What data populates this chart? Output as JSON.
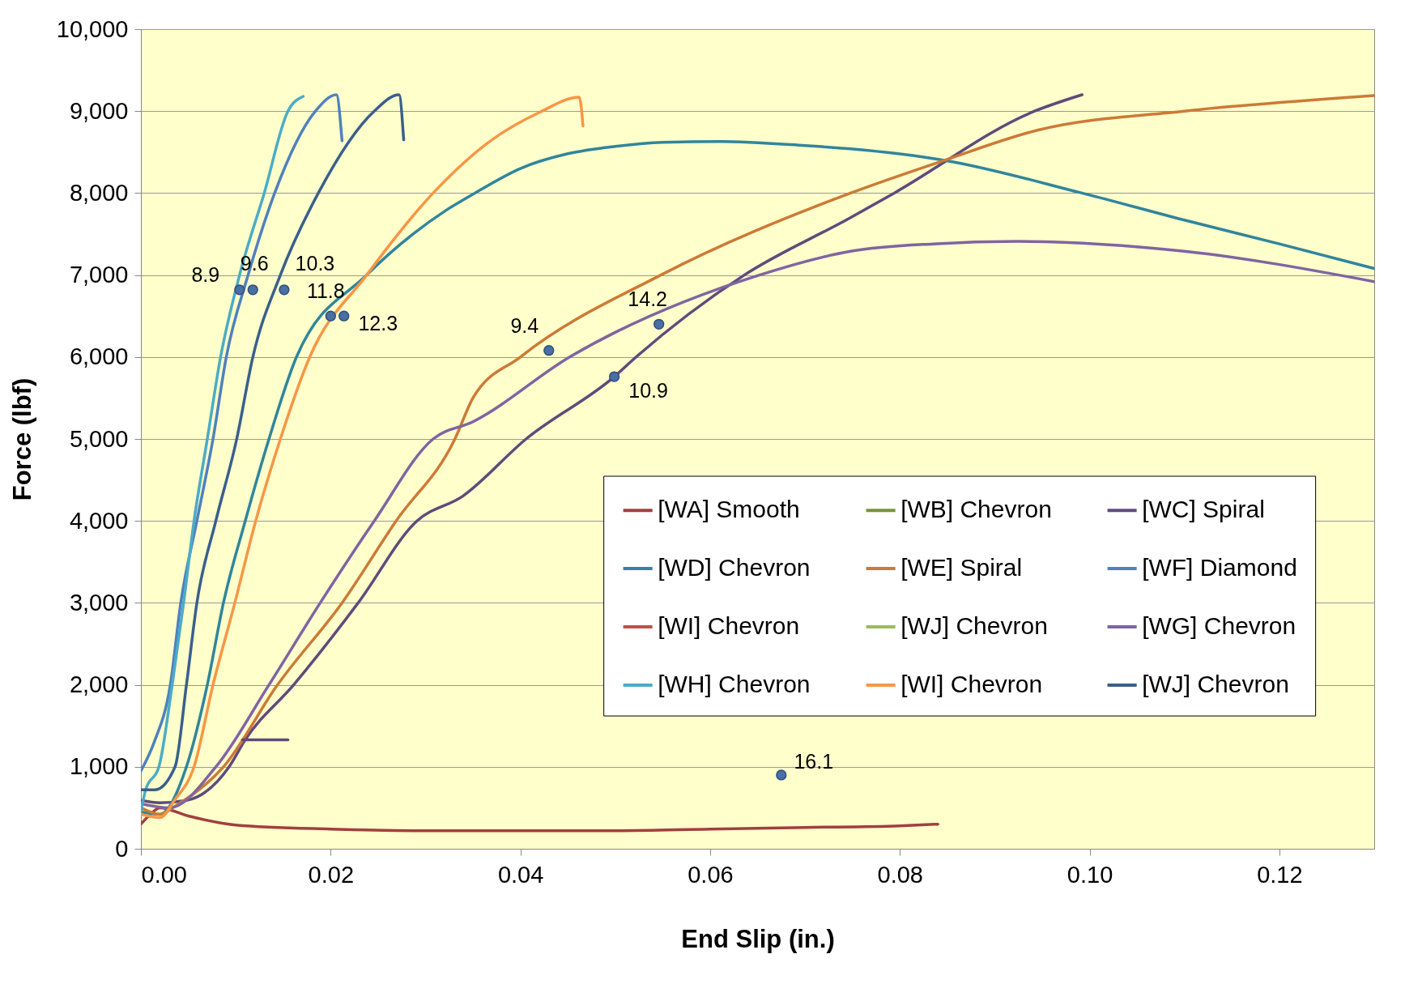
{
  "chart_data": {
    "type": "line",
    "xlabel": "End Slip (in.)",
    "ylabel": "Force (lbf)",
    "xlim": [
      0,
      0.13
    ],
    "ylim": [
      0,
      10000
    ],
    "xticks": [
      {
        "value": 0,
        "label": "0.00"
      },
      {
        "value": 0.02,
        "label": "0.02"
      },
      {
        "value": 0.04,
        "label": "0.04"
      },
      {
        "value": 0.06,
        "label": "0.06"
      },
      {
        "value": 0.08,
        "label": "0.08"
      },
      {
        "value": 0.1,
        "label": "0.10"
      },
      {
        "value": 0.12,
        "label": "0.12"
      }
    ],
    "yticks": [
      0,
      {
        "value": 1000,
        "label": "1,000"
      },
      {
        "value": 2000,
        "label": "2,000"
      },
      {
        "value": 3000,
        "label": "3,000"
      },
      {
        "value": 4000,
        "label": "4,000"
      },
      {
        "value": 5000,
        "label": "5,000"
      },
      {
        "value": 6000,
        "label": "6,000"
      },
      {
        "value": 7000,
        "label": "7,000"
      },
      {
        "value": 8000,
        "label": "8,000"
      },
      {
        "value": 9000,
        "label": "9,000"
      },
      {
        "value": 10000,
        "label": "10,000"
      }
    ],
    "grid": "y",
    "legend": "bottom right",
    "line_style": "solid",
    "series": [
      {
        "name": "[WA] Smooth",
        "color": "#a0403f",
        "x": [
          0,
          0.001,
          0.002,
          0.005,
          0.01,
          0.02,
          0.03,
          0.04,
          0.05,
          0.06,
          0.07,
          0.08,
          0.084
        ],
        "values": [
          300,
          420,
          500,
          400,
          290,
          240,
          220,
          220,
          220,
          240,
          260,
          280,
          300
        ]
      },
      {
        "name": "[WB] Chevron",
        "color": "#77933c"
      },
      {
        "name": "[WC] Spiral",
        "color": "#604a7b",
        "x": [
          0,
          0.002,
          0.0048,
          0.0093,
          0.011,
          0.0161,
          0.0229,
          0.0291,
          0.0339,
          0.0406,
          0.0499,
          0.0522,
          0.0636,
          0.0748,
          0.0794,
          0.0942,
          0.0992
        ],
        "values": [
          590,
          560,
          590,
          1000,
          1330,
          2000,
          3000,
          4000,
          4300,
          5000,
          5760,
          6000,
          7000,
          7700,
          8000,
          9000,
          9200
        ]
      },
      {
        "name": "[WD] Chevron",
        "color": "#31859c",
        "x": [
          0,
          0.002,
          0.0048,
          0.007,
          0.0087,
          0.011,
          0.0135,
          0.0164,
          0.0238,
          0.0323,
          0.0352,
          0.04,
          0.045,
          0.05,
          0.055,
          0.061,
          0.07,
          0.0748,
          0.0847,
          0.0992,
          0.11,
          0.12,
          0.13
        ],
        "values": [
          450,
          420,
          1000,
          2000,
          3000,
          4000,
          5000,
          6000,
          7000,
          7800,
          8000,
          8300,
          8480,
          8570,
          8620,
          8630,
          8580,
          8540,
          8400,
          8000,
          7670,
          7380,
          7080
        ]
      },
      {
        "name": "[WE] Spiral",
        "color": "#cc7a36",
        "x": [
          0,
          0.002,
          0.0036,
          0.0087,
          0.0144,
          0.0212,
          0.0269,
          0.0331,
          0.035,
          0.04,
          0.0548,
          0.0748,
          0.0847,
          0.0946,
          0.11,
          0.13
        ],
        "values": [
          500,
          420,
          520,
          1000,
          2000,
          3000,
          4000,
          5000,
          5500,
          6000,
          7000,
          8000,
          8400,
          8770,
          9000,
          9190
        ]
      },
      {
        "name": "[WF] Diamond",
        "color": "#4f81bd",
        "x": [
          0,
          0.0014,
          0.0031,
          0.0042,
          0.0059,
          0.0076,
          0.009,
          0.0113,
          0.0141,
          0.0184,
          0.0206,
          0.0212
        ],
        "values": [
          950,
          1300,
          2000,
          3000,
          4000,
          5000,
          6000,
          7000,
          8000,
          9000,
          9200,
          8640
        ]
      },
      {
        "name": "[WI] Chevron",
        "color": "#c0504d"
      },
      {
        "name": "[WJ] Chevron",
        "color": "#9bbb59"
      },
      {
        "name": "[WG] Chevron",
        "color": "#8064a2",
        "x": [
          0,
          0.003,
          0.0079,
          0.0135,
          0.0189,
          0.0246,
          0.0308,
          0.035,
          0.0452,
          0.0652,
          0.0748,
          0.0835,
          0.0925,
          0.11,
          0.13
        ],
        "values": [
          550,
          500,
          1000,
          2000,
          3000,
          4000,
          5000,
          5210,
          6000,
          7000,
          7290,
          7380,
          7410,
          7290,
          6920
        ]
      },
      {
        "name": "[WH] Chevron",
        "color": "#4bacc6",
        "x": [
          0,
          0.0005,
          0.0019,
          0.0033,
          0.0045,
          0.0056,
          0.007,
          0.0084,
          0.0104,
          0.013,
          0.0155,
          0.0171
        ],
        "values": [
          450,
          720,
          1000,
          2000,
          3000,
          4000,
          5000,
          6000,
          7000,
          8000,
          9000,
          9180
        ]
      },
      {
        "name": "[WI] Chevron",
        "color": "#f79646",
        "x": [
          0,
          0.002,
          0.0036,
          0.0056,
          0.0076,
          0.0099,
          0.0121,
          0.0147,
          0.0178,
          0.0238,
          0.0308,
          0.037,
          0.0421,
          0.0462,
          0.0466
        ],
        "values": [
          420,
          380,
          600,
          1000,
          2000,
          3000,
          4000,
          5000,
          6000,
          7000,
          8000,
          8650,
          8990,
          9170,
          8820
        ]
      },
      {
        "name": "[WJ] Chevron",
        "color": "#3a5f8c",
        "x": [
          0,
          0.0015,
          0.0036,
          0.0048,
          0.0059,
          0.0079,
          0.0101,
          0.0118,
          0.0147,
          0.0187,
          0.0246,
          0.0272,
          0.0277
        ],
        "values": [
          720,
          720,
          1000,
          2000,
          3000,
          4000,
          5000,
          6000,
          7000,
          8000,
          9000,
          9200,
          8650
        ]
      },
      {
        "color": "#604a7b",
        "x": [
          0.0107,
          0.0155
        ],
        "values": [
          1330,
          1330
        ]
      },
      {
        "type": "scatter",
        "marker": "circle",
        "color": "#4a6fa5",
        "x": [
          0.0104,
          0.0118,
          0.0151,
          0.02,
          0.0214,
          0.043,
          0.0546,
          0.0499,
          0.0675
        ],
        "values": [
          6820,
          6820,
          6820,
          6500,
          6500,
          6080,
          6400,
          5760,
          900
        ]
      }
    ],
    "annotations": [
      {
        "text": "8.9",
        "x": 0.0104,
        "y": 6820
      },
      {
        "text": "9.6",
        "x": 0.0118,
        "y": 6820
      },
      {
        "text": "10.3",
        "x": 0.0151,
        "y": 6820
      },
      {
        "text": "11.8",
        "x": 0.02,
        "y": 6500
      },
      {
        "text": "12.3",
        "x": 0.0214,
        "y": 6500
      },
      {
        "text": "9.4",
        "x": 0.043,
        "y": 6080
      },
      {
        "text": "14.2",
        "x": 0.0546,
        "y": 6400
      },
      {
        "text": "10.9",
        "x": 0.0499,
        "y": 5760
      },
      {
        "text": "16.1",
        "x": 0.0675,
        "y": 900
      }
    ]
  }
}
